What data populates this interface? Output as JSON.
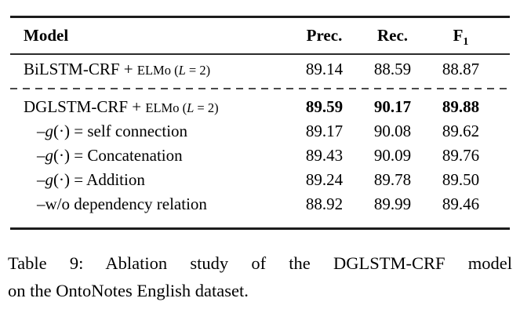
{
  "table": {
    "header": {
      "model": "Model",
      "prec": "Prec.",
      "rec": "Rec.",
      "f1_base": "F",
      "f1_sub": "1"
    },
    "rows": [
      {
        "group": 1,
        "indent": false,
        "bold_values": false,
        "parts": [
          {
            "style": "normal",
            "text": "BiLSTM-CRF + "
          },
          {
            "style": "small",
            "text": "ELMo ("
          },
          {
            "style": "small-italic",
            "text": "L"
          },
          {
            "style": "small",
            "text": " = 2)"
          }
        ],
        "values": [
          "89.14",
          "88.59",
          "88.87"
        ]
      },
      {
        "group": 2,
        "indent": false,
        "bold_values": true,
        "parts": [
          {
            "style": "normal",
            "text": "DGLSTM-CRF + "
          },
          {
            "style": "small",
            "text": "ELMo ("
          },
          {
            "style": "small-italic",
            "text": "L"
          },
          {
            "style": "small",
            "text": " = 2)"
          }
        ],
        "values": [
          "89.59",
          "90.17",
          "89.88"
        ]
      },
      {
        "group": 2,
        "indent": true,
        "bold_values": false,
        "parts": [
          {
            "style": "normal",
            "text": "–"
          },
          {
            "style": "italic",
            "text": "g"
          },
          {
            "style": "normal",
            "text": "(·) = self connection"
          }
        ],
        "values": [
          "89.17",
          "90.08",
          "89.62"
        ]
      },
      {
        "group": 2,
        "indent": true,
        "bold_values": false,
        "parts": [
          {
            "style": "normal",
            "text": "–"
          },
          {
            "style": "italic",
            "text": "g"
          },
          {
            "style": "normal",
            "text": "(·) = Concatenation"
          }
        ],
        "values": [
          "89.43",
          "90.09",
          "89.76"
        ]
      },
      {
        "group": 2,
        "indent": true,
        "bold_values": false,
        "parts": [
          {
            "style": "normal",
            "text": "–"
          },
          {
            "style": "italic",
            "text": "g"
          },
          {
            "style": "normal",
            "text": "(·) = Addition"
          }
        ],
        "values": [
          "89.24",
          "89.78",
          "89.50"
        ]
      },
      {
        "group": 2,
        "indent": true,
        "bold_values": false,
        "parts": [
          {
            "style": "normal",
            "text": "–w/o dependency relation"
          }
        ],
        "values": [
          "88.92",
          "89.99",
          "89.46"
        ]
      }
    ]
  },
  "caption": {
    "line1": "Table 9: Ablation study of the DGLSTM-CRF model",
    "line2": "on the OntoNotes English dataset."
  }
}
